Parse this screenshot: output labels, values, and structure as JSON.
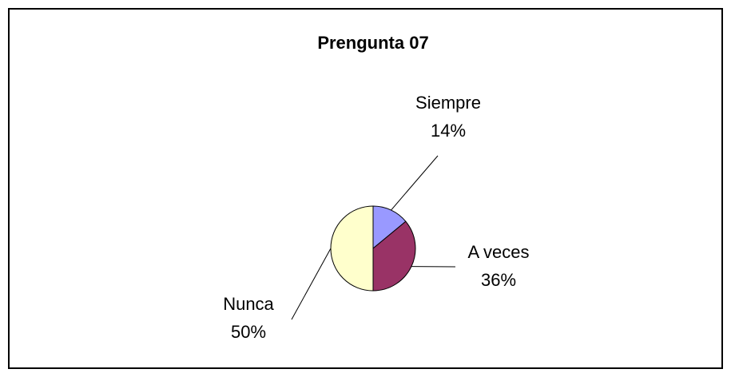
{
  "chart_data": {
    "type": "pie",
    "title": "Prengunta 07",
    "categories": [
      "Siempre",
      "A veces",
      "Nunca"
    ],
    "values": [
      14,
      36,
      50
    ],
    "value_labels": [
      "14%",
      "36%",
      "50%"
    ],
    "colors": [
      "#9999ff",
      "#993366",
      "#ffffcc"
    ]
  }
}
